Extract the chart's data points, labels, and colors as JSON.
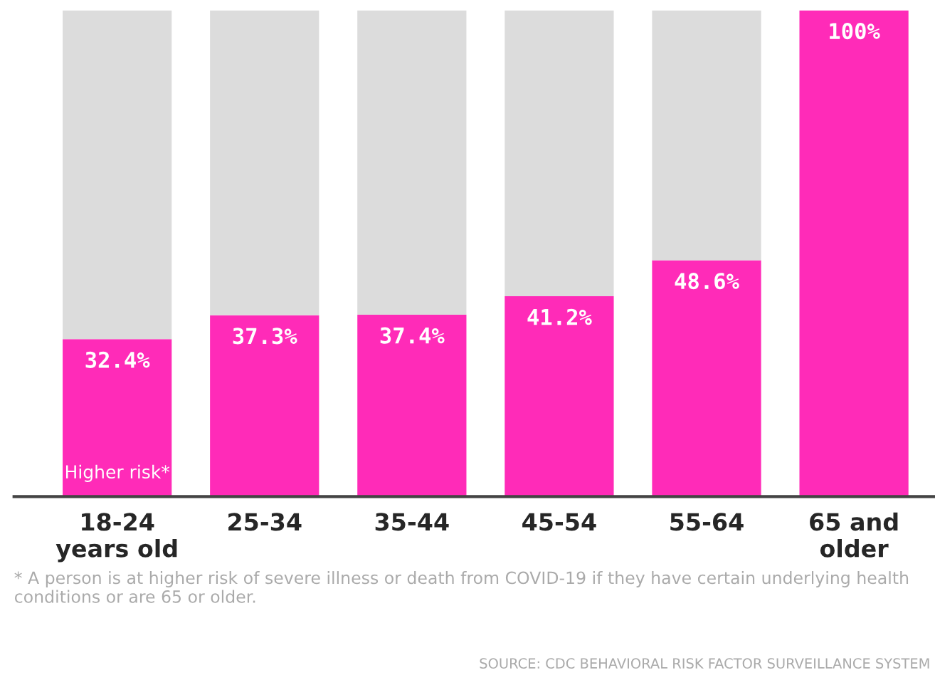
{
  "chart_data": {
    "type": "bar",
    "stacked": true,
    "categories": [
      "18-24\nyears old",
      "25-34",
      "35-44",
      "45-54",
      "55-64",
      "65 and\nolder"
    ],
    "series": [
      {
        "name": "Higher risk*",
        "color": "#ff2bb8",
        "values": [
          32.4,
          37.3,
          37.4,
          41.2,
          48.6,
          100
        ],
        "value_labels": [
          "32.4%",
          "37.3%",
          "37.4%",
          "41.2%",
          "48.6%",
          "100%"
        ]
      },
      {
        "color": "#dcdcdc",
        "values": [
          67.6,
          62.7,
          62.6,
          58.8,
          51.4,
          0
        ]
      }
    ],
    "ylim": [
      0,
      100
    ],
    "tick_labels": "x",
    "grid": false,
    "legend": false,
    "annotations": [
      "* A person is at higher risk of severe illness or death from COVID-19 if they have certain underlying health conditions or are 65 or older.",
      "SOURCE: CDC BEHAVIORAL RISK FACTOR SURVEILLANCE SYSTEM"
    ]
  }
}
